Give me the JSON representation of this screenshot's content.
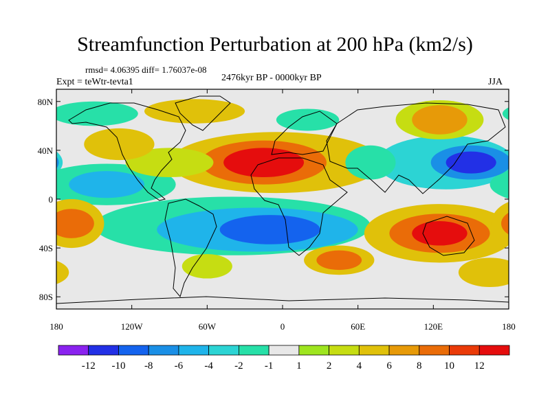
{
  "header": {
    "title": "Streamfunction Perturbation at 200 hPa (km2/s)",
    "stats": "rmsd= 4.06395 diff= 1.76037e-08",
    "experiment": "Expt = teWtr-tevta1",
    "period": "2476kyr BP - 0000kyr BP",
    "season": "JJA"
  },
  "map": {
    "lat_labels": [
      "80N",
      "40N",
      "0",
      "40S",
      "80S"
    ],
    "lat_values": [
      80,
      40,
      0,
      -40,
      -80
    ],
    "lon_labels": [
      "180",
      "120W",
      "60W",
      "0",
      "60E",
      "120E",
      "180"
    ],
    "lon_values": [
      -180,
      -120,
      -60,
      0,
      60,
      120,
      180
    ],
    "lat_range": [
      -90,
      90
    ],
    "lon_range": [
      -180,
      180
    ],
    "blobs": [
      {
        "lon": -15,
        "lat": 30,
        "rlon": 32,
        "rlat": 12,
        "level": 12
      },
      {
        "lon": -15,
        "lat": 30,
        "rlon": 50,
        "rlat": 18,
        "level": 8
      },
      {
        "lon": -5,
        "lat": 30,
        "rlon": 85,
        "rlat": 25,
        "level": 4
      },
      {
        "lon": 150,
        "lat": 30,
        "rlon": 20,
        "rlat": 9,
        "level": -12
      },
      {
        "lon": 150,
        "lat": 30,
        "rlon": 32,
        "rlat": 14,
        "level": -8
      },
      {
        "lon": 130,
        "lat": 30,
        "rlon": 55,
        "rlat": 22,
        "level": -4
      },
      {
        "lon": 125,
        "lat": -28,
        "rlon": 22,
        "rlat": 10,
        "level": 12
      },
      {
        "lon": 125,
        "lat": -28,
        "rlon": 40,
        "rlat": 16,
        "level": 8
      },
      {
        "lon": 125,
        "lat": -28,
        "rlon": 60,
        "rlat": 24,
        "level": 4
      },
      {
        "lon": -168,
        "lat": -20,
        "rlon": 18,
        "rlat": 12,
        "level": 8
      },
      {
        "lon": -168,
        "lat": -20,
        "rlon": 26,
        "rlat": 20,
        "level": 4
      },
      {
        "lon": -10,
        "lat": -25,
        "rlon": 40,
        "rlat": 12,
        "level": -10
      },
      {
        "lon": -20,
        "lat": -25,
        "rlon": 80,
        "rlat": 18,
        "level": -6
      },
      {
        "lon": -40,
        "lat": -22,
        "rlon": 110,
        "rlat": 24,
        "level": -2
      },
      {
        "lon": -140,
        "lat": 12,
        "rlon": 30,
        "rlat": 11,
        "level": -6
      },
      {
        "lon": -140,
        "lat": 12,
        "rlon": 55,
        "rlat": 17,
        "level": -2
      },
      {
        "lon": 45,
        "lat": -50,
        "rlon": 18,
        "rlat": 8,
        "level": 8
      },
      {
        "lon": 45,
        "lat": -50,
        "rlon": 28,
        "rlat": 12,
        "level": 4
      },
      {
        "lon": -130,
        "lat": 45,
        "rlon": 28,
        "rlat": 13,
        "level": 4
      },
      {
        "lon": -90,
        "lat": 30,
        "rlon": 35,
        "rlat": 12,
        "level": 2
      },
      {
        "lon": -70,
        "lat": 72,
        "rlon": 40,
        "rlat": 10,
        "level": 4
      },
      {
        "lon": -150,
        "lat": 70,
        "rlon": 35,
        "rlat": 10,
        "level": -2
      },
      {
        "lon": 20,
        "lat": 65,
        "rlon": 25,
        "rlat": 9,
        "level": -2
      },
      {
        "lon": 125,
        "lat": 65,
        "rlon": 22,
        "rlat": 12,
        "level": 6
      },
      {
        "lon": 125,
        "lat": 65,
        "rlon": 35,
        "rlat": 16,
        "level": 2
      },
      {
        "lon": 70,
        "lat": 30,
        "rlon": 20,
        "rlat": 14,
        "level": -2
      },
      {
        "lon": -60,
        "lat": -55,
        "rlon": 20,
        "rlat": 10,
        "level": 2
      },
      {
        "lon": 165,
        "lat": -60,
        "rlon": 25,
        "rlat": 12,
        "level": 4
      }
    ]
  },
  "colorbar": {
    "colors": [
      "#8a22ef",
      "#2230e6",
      "#1463ee",
      "#1a8fe6",
      "#1fb4ea",
      "#2cd4d4",
      "#27e0a8",
      "#e8e8e8",
      "#9ee51f",
      "#c6dd12",
      "#e0c10a",
      "#e79a08",
      "#ea6c08",
      "#ea3a08",
      "#e50d0d"
    ],
    "labels": [
      "-12",
      "-10",
      "-8",
      "-6",
      "-4",
      "-2",
      "-1",
      "1",
      "2",
      "4",
      "6",
      "8",
      "10",
      "12"
    ]
  }
}
